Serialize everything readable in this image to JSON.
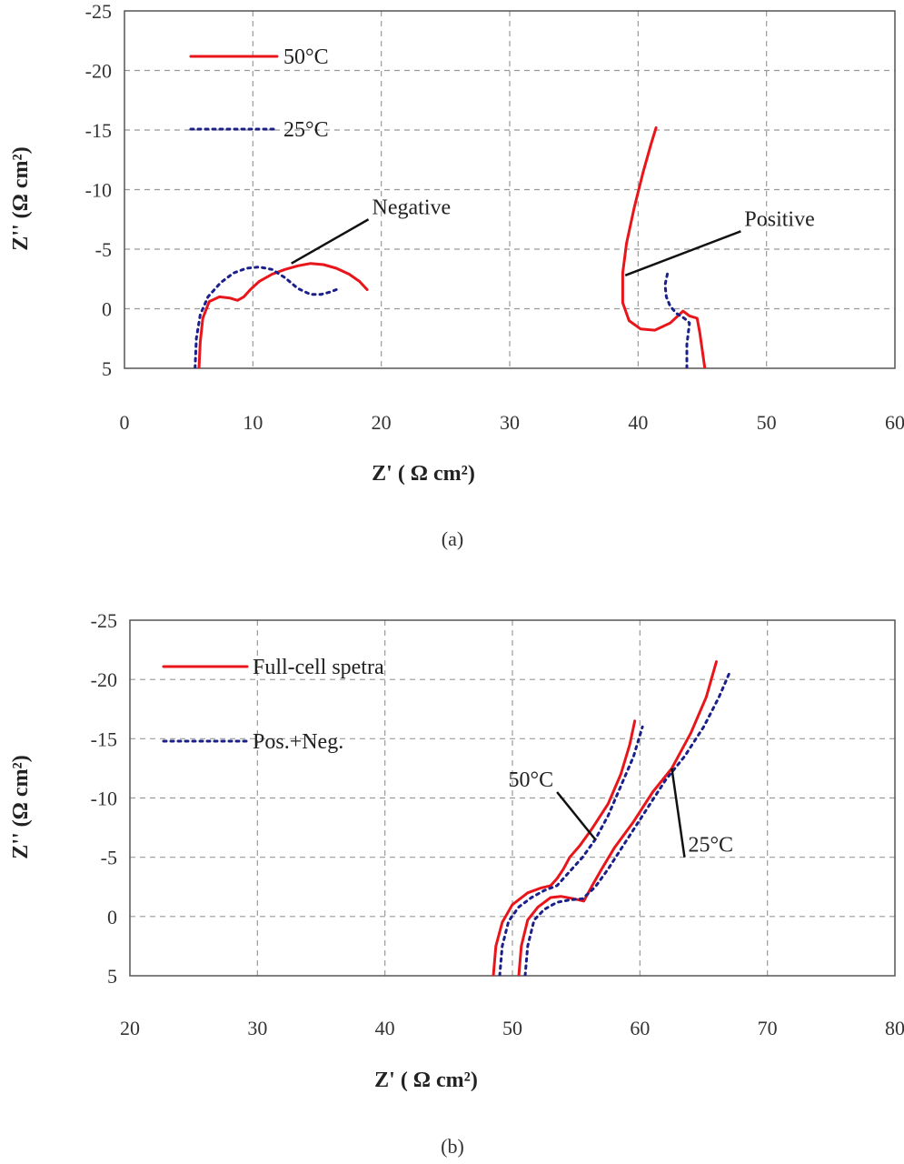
{
  "chart_data": [
    {
      "type": "line",
      "panel_label": "(a)",
      "xlabel": "Z' ( Ω cm²)",
      "ylabel": "Z'' (Ω cm²)",
      "xlim": [
        0,
        60
      ],
      "ylim": [
        5,
        -25
      ],
      "y_inverted": true,
      "x_ticks": [
        0,
        10,
        20,
        30,
        40,
        50,
        60
      ],
      "x_tick_labels": [
        "0",
        "10",
        "20",
        "30",
        "40",
        "50",
        "60"
      ],
      "y_ticks": [
        -25,
        -20,
        -15,
        -10,
        -5,
        0,
        5
      ],
      "y_tick_labels": [
        "-25",
        "-20",
        "-15",
        "-10",
        "-5",
        "0",
        "5"
      ],
      "grid": true,
      "legend_position": "top-left",
      "legend": [
        {
          "label": "50°C",
          "color": "#e8161b",
          "style": "solid"
        },
        {
          "label": "25°C",
          "color": "#1a1f8a",
          "style": "dotted"
        }
      ],
      "annotations": [
        {
          "text": "Negative",
          "x_target": 13,
          "y_target": -3.8,
          "x_text": 19,
          "y_text": -7.5
        },
        {
          "text": "Positive",
          "x_target": 39,
          "y_target": -2.8,
          "x_text": 48,
          "y_text": -6.5
        }
      ],
      "series": [
        {
          "name": "50°C",
          "curve": "Negative",
          "color": "#e8161b",
          "style": "solid",
          "x": [
            5.8,
            5.9,
            6.1,
            6.6,
            7.4,
            8.2,
            8.8,
            9.3,
            9.8,
            10.5,
            11.5,
            12.5,
            13.5,
            14.5,
            15.5,
            16.5,
            17.5,
            18.3,
            18.9
          ],
          "y": [
            5,
            2.8,
            0.8,
            -0.6,
            -1.0,
            -0.9,
            -0.7,
            -1.0,
            -1.6,
            -2.3,
            -2.9,
            -3.3,
            -3.6,
            -3.8,
            -3.7,
            -3.4,
            -2.9,
            -2.3,
            -1.6
          ]
        },
        {
          "name": "25°C",
          "curve": "Negative",
          "color": "#1a1f8a",
          "style": "dotted",
          "x": [
            5.5,
            5.6,
            5.9,
            6.5,
            7.5,
            8.5,
            9.5,
            10.5,
            11.5,
            12.5,
            13.5,
            14.5,
            15.3,
            16.0,
            16.5
          ],
          "y": [
            5,
            2.5,
            0.5,
            -1.0,
            -2.2,
            -3.0,
            -3.4,
            -3.5,
            -3.3,
            -2.6,
            -1.7,
            -1.2,
            -1.2,
            -1.4,
            -1.6
          ]
        },
        {
          "name": "50°C",
          "curve": "Positive",
          "color": "#e8161b",
          "style": "solid",
          "x": [
            45.2,
            45.0,
            44.8,
            44.6,
            44.0,
            43.5,
            42.5,
            41.3,
            40.2,
            39.3,
            38.8,
            38.8,
            39.1,
            39.7,
            40.4,
            41.0,
            41.4
          ],
          "y": [
            5,
            3.5,
            2.0,
            0.8,
            0.6,
            0.2,
            1.2,
            1.8,
            1.7,
            1.0,
            -0.5,
            -3.0,
            -5.5,
            -8.5,
            -11.5,
            -13.8,
            -15.2
          ]
        },
        {
          "name": "25°C",
          "curve": "Positive",
          "color": "#1a1f8a",
          "style": "dotted",
          "x": [
            43.8,
            43.8,
            44.0,
            43.6,
            43.0,
            42.5,
            42.2,
            42.1,
            42.3
          ],
          "y": [
            5,
            3.0,
            1.2,
            0.8,
            0.4,
            -0.2,
            -1.0,
            -2.0,
            -3.0
          ]
        }
      ]
    },
    {
      "type": "line",
      "panel_label": "(b)",
      "xlabel": "Z' ( Ω cm²)",
      "ylabel": "Z'' (Ω cm²)",
      "xlim": [
        20,
        80
      ],
      "ylim": [
        5,
        -25
      ],
      "y_inverted": true,
      "x_ticks": [
        20,
        30,
        40,
        50,
        60,
        70,
        80
      ],
      "x_tick_labels": [
        "20",
        "30",
        "40",
        "50",
        "60",
        "70",
        "80"
      ],
      "y_ticks": [
        -25,
        -20,
        -15,
        -10,
        -5,
        0,
        5
      ],
      "y_tick_labels": [
        "-25",
        "-20",
        "-15",
        "-10",
        "-5",
        "0",
        "5"
      ],
      "grid": true,
      "legend_position": "top-left",
      "legend": [
        {
          "label": "Full-cell spetra",
          "color": "#e8161b",
          "style": "solid"
        },
        {
          "label": "Pos.+Neg.",
          "color": "#1a1f8a",
          "style": "dotted"
        }
      ],
      "annotations": [
        {
          "text": "50°C",
          "x_target": 56.5,
          "y_target": -6.5,
          "x_text": 53.5,
          "y_text": -10.5
        },
        {
          "text": "25°C",
          "x_target": 62.5,
          "y_target": -12.5,
          "x_text": 63.5,
          "y_text": -5
        }
      ],
      "series": [
        {
          "name": "50°C",
          "curve": "Full-cell spetra",
          "color": "#e8161b",
          "style": "solid",
          "x": [
            48.5,
            48.7,
            49.2,
            50.0,
            51.2,
            52.2,
            53.0,
            53.5,
            54.0,
            54.5,
            55.3,
            56.3,
            57.5,
            58.5,
            59.2,
            59.6
          ],
          "y": [
            5,
            2.5,
            0.5,
            -1.0,
            -2.0,
            -2.4,
            -2.6,
            -3.2,
            -4.0,
            -5.0,
            -6.0,
            -7.5,
            -9.5,
            -12.0,
            -14.5,
            -16.5
          ]
        },
        {
          "name": "50°C",
          "curve": "Pos.+Neg.",
          "color": "#1a1f8a",
          "style": "dotted",
          "x": [
            49.0,
            49.2,
            49.7,
            50.5,
            51.5,
            52.5,
            53.5,
            54.5,
            55.5,
            56.5,
            57.5,
            58.5,
            59.5,
            60.2
          ],
          "y": [
            5,
            2.5,
            0.4,
            -0.8,
            -1.6,
            -2.2,
            -2.6,
            -3.8,
            -5.0,
            -6.5,
            -8.5,
            -11.0,
            -13.5,
            -16.0
          ]
        },
        {
          "name": "25°C",
          "curve": "Full-cell spetra",
          "color": "#e8161b",
          "style": "solid",
          "x": [
            50.5,
            50.7,
            51.2,
            52.0,
            53.0,
            53.8,
            54.8,
            55.6,
            56.2,
            57.0,
            58.0,
            59.5,
            61.0,
            62.5,
            64.0,
            65.2,
            66.0
          ],
          "y": [
            5,
            2.5,
            0.3,
            -0.8,
            -1.6,
            -1.7,
            -1.5,
            -1.3,
            -2.5,
            -4.0,
            -5.8,
            -8.0,
            -10.5,
            -12.5,
            -15.5,
            -18.5,
            -21.5
          ]
        },
        {
          "name": "25°C",
          "curve": "Pos.+Neg.",
          "color": "#1a1f8a",
          "style": "dotted",
          "x": [
            51.0,
            51.2,
            51.7,
            52.5,
            53.5,
            54.5,
            55.5,
            56.5,
            57.5,
            59.0,
            60.5,
            62.0,
            63.5,
            65.0,
            66.2,
            67.0
          ],
          "y": [
            5,
            2.5,
            0.3,
            -0.6,
            -1.2,
            -1.4,
            -1.5,
            -2.5,
            -4.0,
            -6.5,
            -9.0,
            -11.5,
            -13.5,
            -16.0,
            -18.5,
            -20.5
          ]
        }
      ]
    }
  ]
}
